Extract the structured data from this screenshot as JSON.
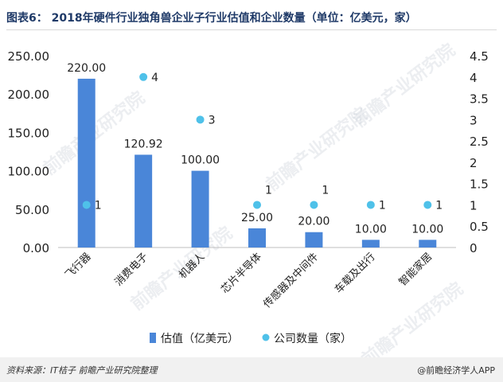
{
  "title": "图表6： 2018年硬件行业独角兽企业子行业估值和企业数量（单位：亿美元，家）",
  "source": "资料来源：IT桔子  前瞻产业研究院整理",
  "brand": "@前瞻经济学人APP",
  "watermark": "前瞻产业研究院",
  "chart_data": {
    "type": "bar+scatter",
    "categories": [
      "飞行器",
      "消费电子",
      "机器人",
      "芯片半导体",
      "传感器及中间件",
      "车载及出行",
      "智能家居"
    ],
    "series": [
      {
        "name": "估值（亿美元）",
        "type": "bar",
        "axis": "left",
        "values": [
          220.0,
          120.92,
          100.0,
          25.0,
          20.0,
          10.0,
          10.0
        ],
        "labels": [
          "220.00",
          "120.92",
          "100.00",
          "25.00",
          "20.00",
          "10.00",
          "10.00"
        ]
      },
      {
        "name": "公司数量（家）",
        "type": "scatter",
        "axis": "right",
        "values": [
          1,
          4,
          3,
          1,
          1,
          1,
          1
        ],
        "labels": [
          "1",
          "4",
          "3",
          "1",
          "1",
          "1",
          "1"
        ]
      }
    ],
    "y_left": {
      "min": 0,
      "max": 250,
      "ticks": [
        "0.00",
        "50.00",
        "100.00",
        "150.00",
        "200.00",
        "250.00"
      ]
    },
    "y_right": {
      "min": 0,
      "max": 4.5,
      "ticks": [
        "0",
        "0.5",
        "1",
        "1.5",
        "2",
        "2.5",
        "3",
        "3.5",
        "4",
        "4.5"
      ]
    },
    "legend": [
      "估值（亿美元）",
      "公司数量（家）"
    ],
    "colors": {
      "bar": "#4a86d8",
      "dot": "#4fc1e9",
      "axis": "#bfbfbf",
      "text": "#222222"
    }
  }
}
